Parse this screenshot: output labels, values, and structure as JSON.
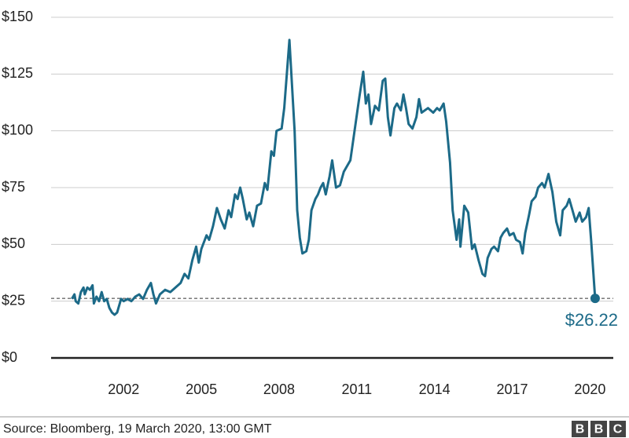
{
  "chart_data": {
    "type": "line",
    "series": [
      {
        "color": "#1c6a88",
        "x": [
          2000.0,
          2000.1,
          2000.15,
          2000.25,
          2000.35,
          2000.45,
          2000.5,
          2000.6,
          2000.7,
          2000.8,
          2000.85,
          2000.95,
          2001.05,
          2001.15,
          2001.25,
          2001.35,
          2001.45,
          2001.55,
          2001.65,
          2001.75,
          2001.9,
          2002.0,
          2002.15,
          2002.3,
          2002.45,
          2002.6,
          2002.75,
          2002.9,
          2003.05,
          2003.15,
          2003.25,
          2003.4,
          2003.6,
          2003.8,
          2004.0,
          2004.2,
          2004.35,
          2004.5,
          2004.65,
          2004.8,
          2004.9,
          2005.0,
          2005.2,
          2005.3,
          2005.45,
          2005.6,
          2005.75,
          2005.9,
          2006.05,
          2006.15,
          2006.3,
          2006.4,
          2006.5,
          2006.6,
          2006.75,
          2006.85,
          2007.0,
          2007.15,
          2007.3,
          2007.45,
          2007.55,
          2007.7,
          2007.8,
          2007.9,
          2008.1,
          2008.2,
          2008.4,
          2008.5,
          2008.6,
          2008.7,
          2008.8,
          2008.9,
          2009.05,
          2009.15,
          2009.25,
          2009.4,
          2009.5,
          2009.6,
          2009.7,
          2009.8,
          2009.95,
          2010.05,
          2010.2,
          2010.35,
          2010.5,
          2010.75,
          2010.85,
          2011.1,
          2011.25,
          2011.35,
          2011.45,
          2011.55,
          2011.7,
          2011.85,
          2012.0,
          2012.1,
          2012.2,
          2012.3,
          2012.45,
          2012.55,
          2012.7,
          2012.8,
          2012.9,
          2013.0,
          2013.15,
          2013.3,
          2013.4,
          2013.5,
          2013.75,
          2013.95,
          2014.1,
          2014.2,
          2014.35,
          2014.45,
          2014.6,
          2014.7,
          2014.85,
          2014.95,
          2015.0,
          2015.15,
          2015.3,
          2015.45,
          2015.55,
          2015.7,
          2015.85,
          2015.95,
          2016.05,
          2016.2,
          2016.3,
          2016.45,
          2016.55,
          2016.65,
          2016.8,
          2016.9,
          2017.05,
          2017.15,
          2017.3,
          2017.4,
          2017.5,
          2017.65,
          2017.75,
          2017.9,
          2018.0,
          2018.15,
          2018.25,
          2018.4,
          2018.55,
          2018.7,
          2018.85,
          2018.95,
          2019.1,
          2019.2,
          2019.3,
          2019.45,
          2019.6,
          2019.7,
          2019.85,
          2019.95,
          2020.05,
          2020.2
        ],
        "values": [
          26,
          28,
          25,
          24,
          29,
          31,
          28,
          31,
          30,
          32,
          24,
          27,
          25,
          29,
          25,
          26,
          22,
          20,
          19,
          20,
          26,
          25,
          26,
          25,
          27,
          28,
          26,
          30,
          33,
          28,
          24,
          28,
          30,
          29,
          31,
          33,
          37,
          35,
          43,
          49,
          42,
          48,
          54,
          52,
          58,
          66,
          61,
          57,
          65,
          62,
          72,
          70,
          75,
          70,
          61,
          64,
          58,
          67,
          68,
          77,
          74,
          91,
          89,
          100,
          101,
          110,
          140,
          120,
          100,
          65,
          53,
          46,
          47,
          52,
          65,
          70,
          72,
          75,
          77,
          72,
          80,
          87,
          75,
          76,
          82,
          87,
          95,
          115,
          126,
          112,
          116,
          103,
          111,
          109,
          122,
          123,
          106,
          98,
          110,
          112,
          109,
          116,
          110,
          103,
          101,
          106,
          114,
          108,
          110,
          108,
          110,
          109,
          112,
          104,
          86,
          65,
          52,
          61,
          49,
          67,
          64,
          48,
          50,
          43,
          37,
          36,
          44,
          48,
          49,
          47,
          53,
          55,
          57,
          54,
          55,
          52,
          51,
          46,
          55,
          63,
          69,
          71,
          75,
          77,
          75,
          81,
          73,
          60,
          54,
          65,
          67,
          70,
          66,
          60,
          64,
          60,
          62,
          66,
          51,
          26.22
        ]
      }
    ],
    "annotations": [
      {
        "x": 2020.2,
        "value": 26.22,
        "label": "$26.22"
      }
    ],
    "xlim": [
      1999.2,
      2020.9
    ],
    "xticks": [
      2002,
      2005,
      2008,
      2011,
      2014,
      2017,
      2020
    ],
    "ylim": [
      0,
      150
    ],
    "yticks": [
      {
        "value": 0,
        "label": "$0"
      },
      {
        "value": 25,
        "label": "$25"
      },
      {
        "value": 50,
        "label": "$50"
      },
      {
        "value": 75,
        "label": "$75"
      },
      {
        "value": 100,
        "label": "$100"
      },
      {
        "value": 125,
        "label": "$125"
      },
      {
        "value": 150,
        "label": "$150"
      }
    ],
    "grid": true,
    "source": "Source: Bloomberg, 19 March 2020, 13:00 GMT",
    "logo": [
      "B",
      "B",
      "C"
    ]
  }
}
